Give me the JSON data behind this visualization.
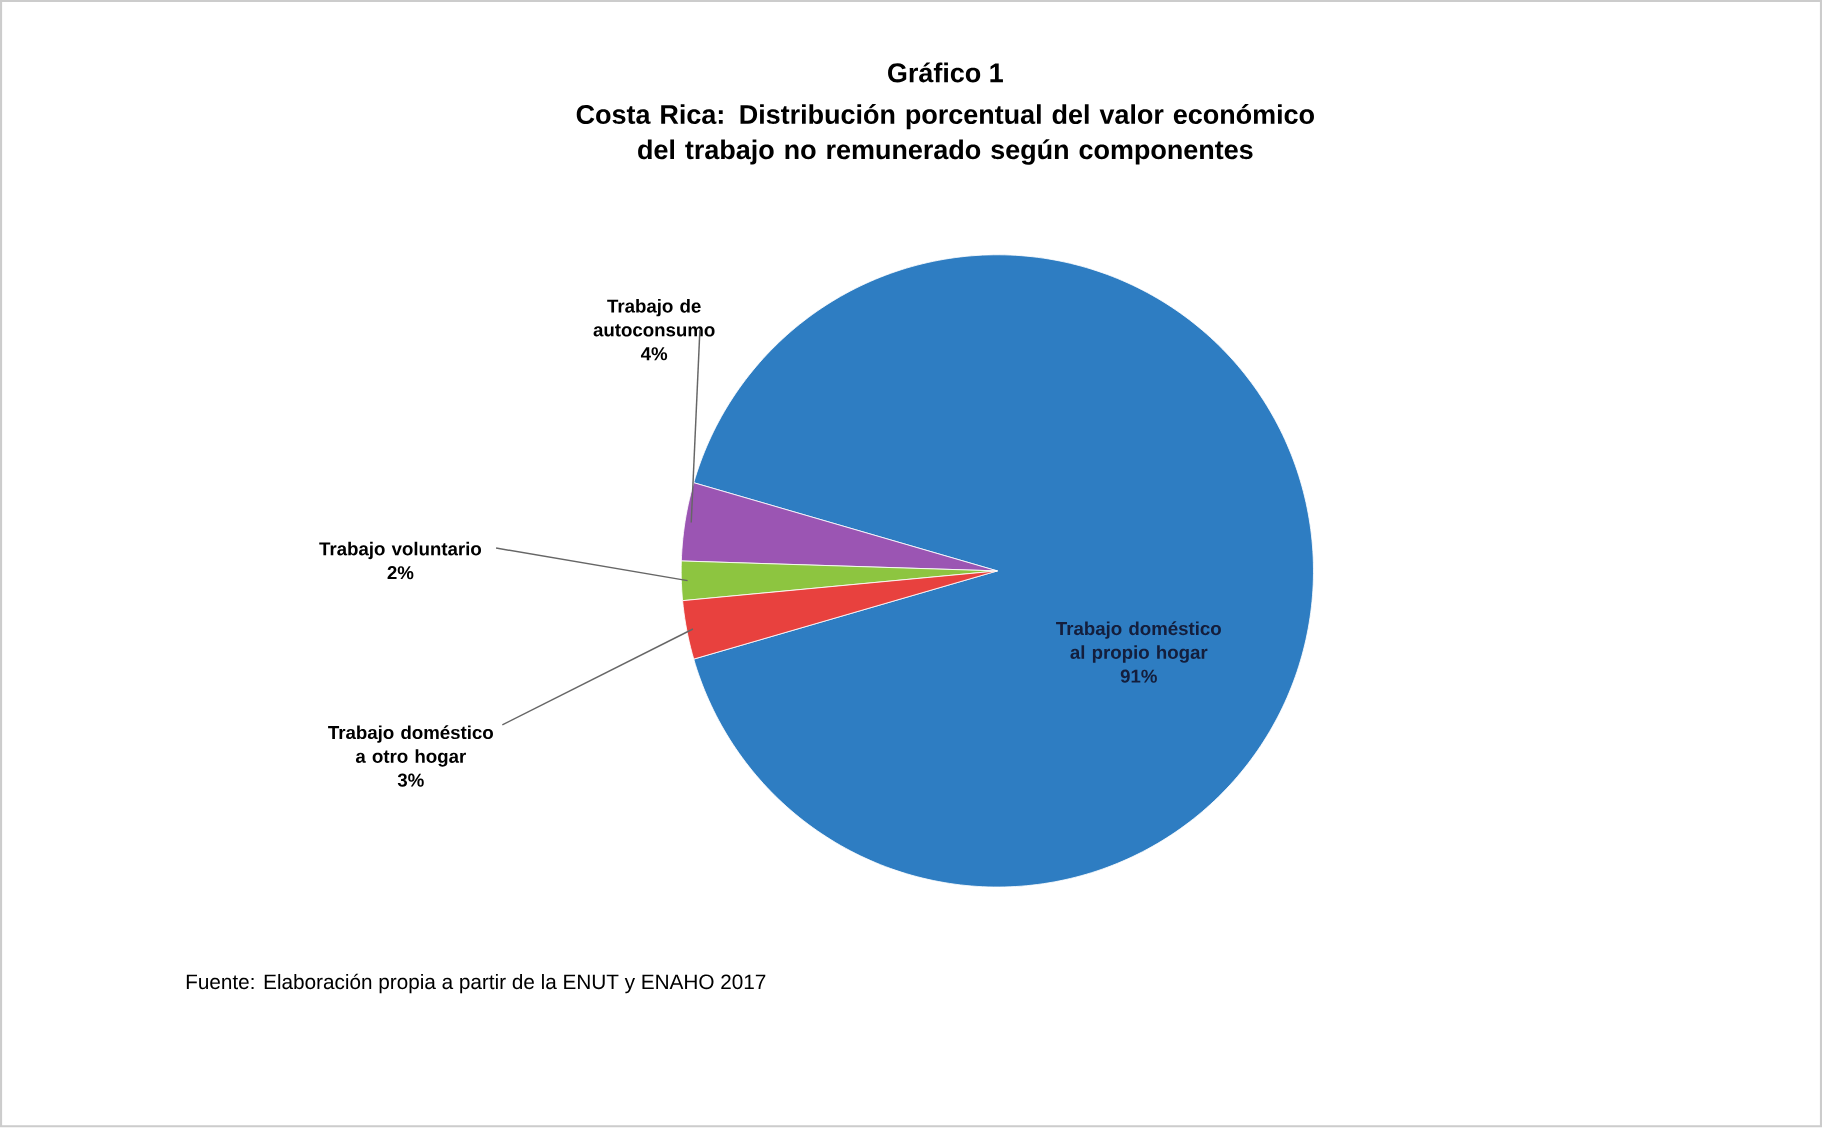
{
  "chart_data": {
    "type": "pie",
    "title": "Gráfico 1",
    "subtitle": "Costa Rica: Distribución porcentual del valor económico del trabajo no remunerado según componentes",
    "categories": [
      "Trabajo doméstico al propio hogar",
      "Trabajo de autoconsumo",
      "Trabajo voluntario",
      "Trabajo doméstico a otro hogar"
    ],
    "values": [
      91,
      4,
      2,
      3
    ],
    "value_labels": [
      "91%",
      "4%",
      "2%",
      "3%"
    ],
    "colors": [
      "#2e7dc2",
      "#9b55b3",
      "#8dc540",
      "#e8413e"
    ],
    "annotations": [
      "Fuente: Elaboración propia a partir de la ENUT y ENAHO 2017"
    ]
  }
}
